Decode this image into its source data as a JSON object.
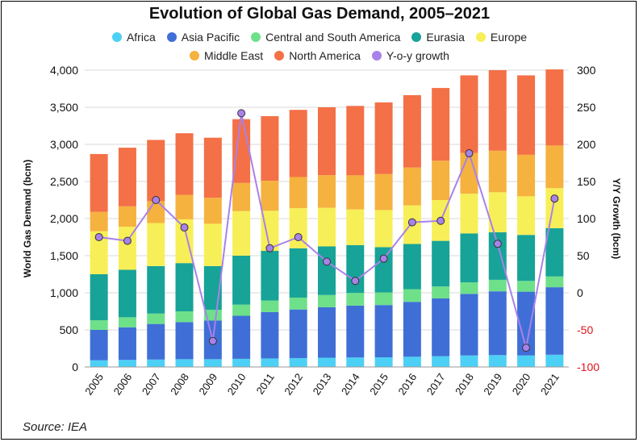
{
  "title": "Evolution of Global Gas Demand, 2005–2021",
  "source": "Source: IEA",
  "colors": {
    "Africa": "#4dd0f5",
    "Asia Pacific": "#3f6fd6",
    "Central and South America": "#6ee08a",
    "Eurasia": "#17a397",
    "Europe": "#f7ef57",
    "Middle East": "#f5b23e",
    "North America": "#f47046",
    "Y-o-y growth": "#a981ea"
  },
  "chart_data": {
    "type": "bar",
    "stacked": true,
    "title": "Evolution of Global Gas Demand, 2005–2021",
    "xlabel": "",
    "ylabel": "World Gas Demand (bcm)",
    "y2label": "Y/Y Growth (bcm)",
    "ylim": [
      0,
      4000
    ],
    "y2lim": [
      -100,
      300
    ],
    "yticks": [
      "0",
      "500",
      "1,000",
      "1,500",
      "2,000",
      "2,500",
      "3,000",
      "3,500",
      "4,000"
    ],
    "y2ticks": [
      "-100",
      "-50",
      "0",
      "50",
      "100",
      "150",
      "200",
      "250",
      "300"
    ],
    "grid": true,
    "legend_position": "top",
    "categories": [
      "2005",
      "2006",
      "2007",
      "2008",
      "2009",
      "2010",
      "2011",
      "2012",
      "2013",
      "2014",
      "2015",
      "2016",
      "2017",
      "2018",
      "2019",
      "2020",
      "2021"
    ],
    "series": [
      {
        "name": "Africa",
        "values": [
          90,
          95,
          100,
          105,
          105,
          110,
          115,
          120,
          125,
          128,
          130,
          138,
          145,
          155,
          160,
          155,
          165
        ]
      },
      {
        "name": "Asia Pacific",
        "values": [
          410,
          440,
          480,
          500,
          520,
          580,
          625,
          655,
          680,
          700,
          705,
          740,
          780,
          830,
          860,
          860,
          910
        ]
      },
      {
        "name": "Central and South America",
        "values": [
          130,
          135,
          140,
          145,
          145,
          150,
          155,
          160,
          165,
          170,
          170,
          170,
          160,
          155,
          155,
          145,
          145
        ]
      },
      {
        "name": "Eurasia",
        "values": [
          620,
          640,
          640,
          650,
          590,
          660,
          670,
          665,
          655,
          645,
          610,
          610,
          615,
          660,
          640,
          620,
          650
        ]
      },
      {
        "name": "Europe",
        "values": [
          580,
          580,
          580,
          590,
          570,
          600,
          540,
          540,
          520,
          480,
          500,
          520,
          550,
          535,
          540,
          520,
          540
        ]
      },
      {
        "name": "Middle East",
        "values": [
          260,
          275,
          295,
          330,
          350,
          380,
          405,
          420,
          440,
          460,
          485,
          510,
          530,
          550,
          560,
          560,
          575
        ]
      },
      {
        "name": "North America",
        "values": [
          780,
          790,
          825,
          830,
          810,
          860,
          870,
          905,
          915,
          935,
          965,
          975,
          980,
          1045,
          1085,
          1070,
          1025
        ]
      }
    ],
    "line_series": {
      "name": "Y-o-y growth",
      "axis": "right",
      "values": [
        75,
        70,
        125,
        88,
        -65,
        242,
        60,
        75,
        42,
        16,
        46,
        95,
        97,
        188,
        66,
        -74,
        127
      ]
    }
  }
}
